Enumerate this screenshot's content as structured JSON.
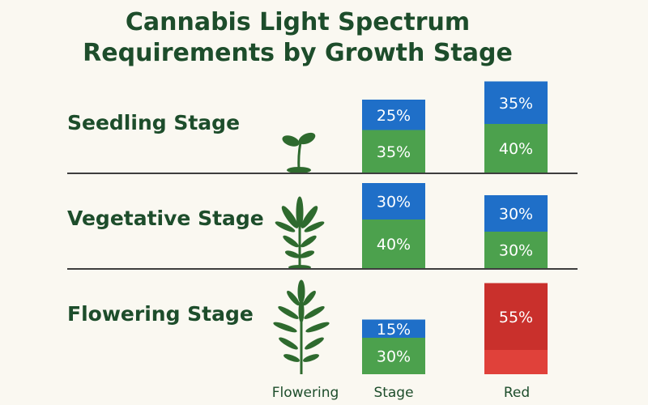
{
  "title": [
    "Cannabis Light Spectrum",
    "Requirements by Growth Stage"
  ],
  "x_labels": [
    "Flowering",
    "Stage",
    "Red"
  ],
  "colors": {
    "blue": "#1f6fc8",
    "green": "#4ca14d",
    "red_dark": "#c9302c",
    "red_light": "#e0413a",
    "title_text": "#1d4d2b",
    "plant": "#2e6a2e"
  },
  "chart_data": {
    "type": "bar",
    "title": "Cannabis Light Spectrum Requirements by Growth Stage",
    "categories": [
      "Seedling Stage",
      "Vegetative Stage",
      "Flowering Stage"
    ],
    "columns": [
      "Stage",
      "Red"
    ],
    "bars": [
      {
        "stage": "Seedling Stage",
        "column": "Stage",
        "segments": [
          {
            "color": "green",
            "value": 35,
            "label": "35%"
          },
          {
            "color": "blue",
            "value": 25,
            "label": "25%"
          }
        ]
      },
      {
        "stage": "Seedling Stage",
        "column": "Red",
        "segments": [
          {
            "color": "green",
            "value": 40,
            "label": "40%"
          },
          {
            "color": "blue",
            "value": 35,
            "label": "35%"
          }
        ]
      },
      {
        "stage": "Vegetative Stage",
        "column": "Stage",
        "segments": [
          {
            "color": "green",
            "value": 40,
            "label": "40%"
          },
          {
            "color": "blue",
            "value": 30,
            "label": "30%"
          }
        ]
      },
      {
        "stage": "Vegetative Stage",
        "column": "Red",
        "segments": [
          {
            "color": "green",
            "value": 30,
            "label": "30%"
          },
          {
            "color": "blue",
            "value": 30,
            "label": "30%"
          }
        ]
      },
      {
        "stage": "Flowering Stage",
        "column": "Stage",
        "segments": [
          {
            "color": "green",
            "value": 30,
            "label": "30%"
          },
          {
            "color": "blue",
            "value": 15,
            "label": "15%"
          }
        ]
      },
      {
        "stage": "Flowering Stage",
        "column": "Red",
        "segments": [
          {
            "color": "red_light",
            "value": 20,
            "label": ""
          },
          {
            "color": "red_dark",
            "value": 55,
            "label": "55%"
          }
        ]
      }
    ]
  }
}
